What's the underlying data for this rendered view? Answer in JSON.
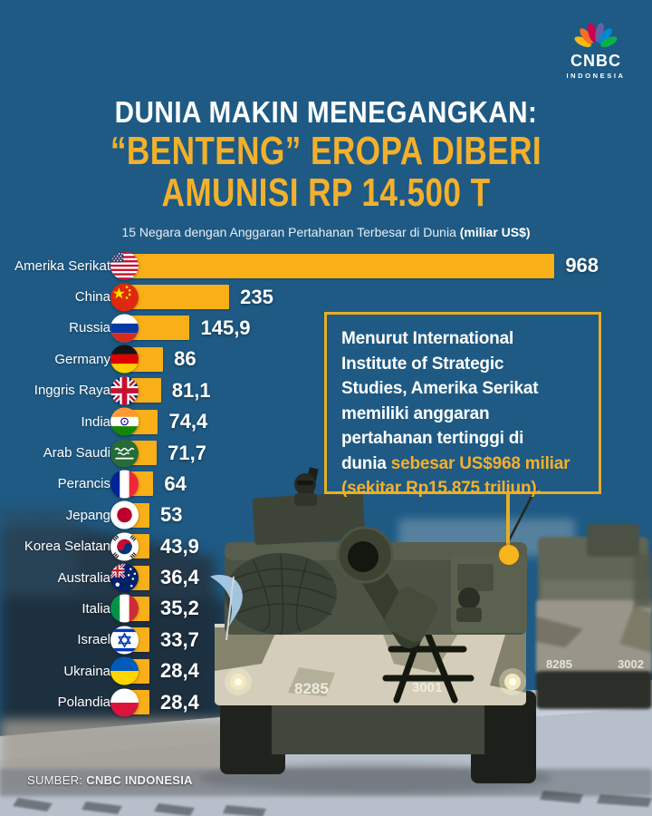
{
  "brand": {
    "name": "CNBC",
    "region": "INDONESIA"
  },
  "header": {
    "title_line1": "DUNIA MAKIN MENEGANGKAN:",
    "title_line2": "“BENTENG” EROPA DIBERI",
    "title_line3": "AMUNISI RP 14.500 T",
    "subtitle": "15 Negara dengan Anggaran Pertahanan Terbesar di Dunia",
    "subtitle_bold": "(miliar US$)"
  },
  "chart_data": {
    "type": "bar",
    "orientation": "horizontal",
    "title": "15 Negara dengan Anggaran Pertahanan Terbesar di Dunia (miliar US$)",
    "unit": "miliar US$",
    "xlim": [
      0,
      968
    ],
    "bar_color": "#F9AF18",
    "label_color": "#FFFFFF",
    "series": [
      {
        "country": "Amerika Serikat",
        "flag": "us",
        "value": 968,
        "label": "968"
      },
      {
        "country": "China",
        "flag": "cn",
        "value": 235,
        "label": "235"
      },
      {
        "country": "Russia",
        "flag": "ru",
        "value": 145.9,
        "label": "145,9"
      },
      {
        "country": "Germany",
        "flag": "de",
        "value": 86,
        "label": "86"
      },
      {
        "country": "Inggris Raya",
        "flag": "gb",
        "value": 81.1,
        "label": "81,1"
      },
      {
        "country": "India",
        "flag": "in",
        "value": 74.4,
        "label": "74,4"
      },
      {
        "country": "Arab Saudi",
        "flag": "sa",
        "value": 71.7,
        "label": "71,7"
      },
      {
        "country": "Perancis",
        "flag": "fr",
        "value": 64,
        "label": "64"
      },
      {
        "country": "Jepang",
        "flag": "jp",
        "value": 53,
        "label": "53"
      },
      {
        "country": "Korea Selatan",
        "flag": "kr",
        "value": 43.9,
        "label": "43,9"
      },
      {
        "country": "Australia",
        "flag": "au",
        "value": 36.4,
        "label": "36,4"
      },
      {
        "country": "Italia",
        "flag": "it",
        "value": 35.2,
        "label": "35,2"
      },
      {
        "country": "Israel",
        "flag": "il",
        "value": 33.7,
        "label": "33,7"
      },
      {
        "country": "Ukraina",
        "flag": "ua",
        "value": 28.4,
        "label": "28,4"
      },
      {
        "country": "Polandia",
        "flag": "pl",
        "value": 28.4,
        "label": "28,4"
      }
    ]
  },
  "callout": {
    "lines": [
      {
        "w": "Menurut International"
      },
      {
        "w": "Institute of Strategic"
      },
      {
        "w": "Studies, Amerika Serikat"
      },
      {
        "w": "memiliki anggaran"
      },
      {
        "w": "pertahanan tertinggi di"
      },
      {
        "w": "dunia ",
        "y": "sebesar US$968 miliar"
      },
      {
        "y": "(sekitar Rp15.875 triliun)."
      }
    ]
  },
  "photo": {
    "vehicle_numbers": [
      "8285",
      "3001",
      "8285",
      "3002"
    ]
  },
  "footer": {
    "source_label": "SUMBER:",
    "source_value": "CNBC INDONESIA"
  },
  "colors": {
    "background": "#1E5A84",
    "bar_yellow": "#F9AF18",
    "title_yellow": "#F3B02C",
    "callout_border": "#E7AE24",
    "text_white": "#FFFFFF"
  }
}
